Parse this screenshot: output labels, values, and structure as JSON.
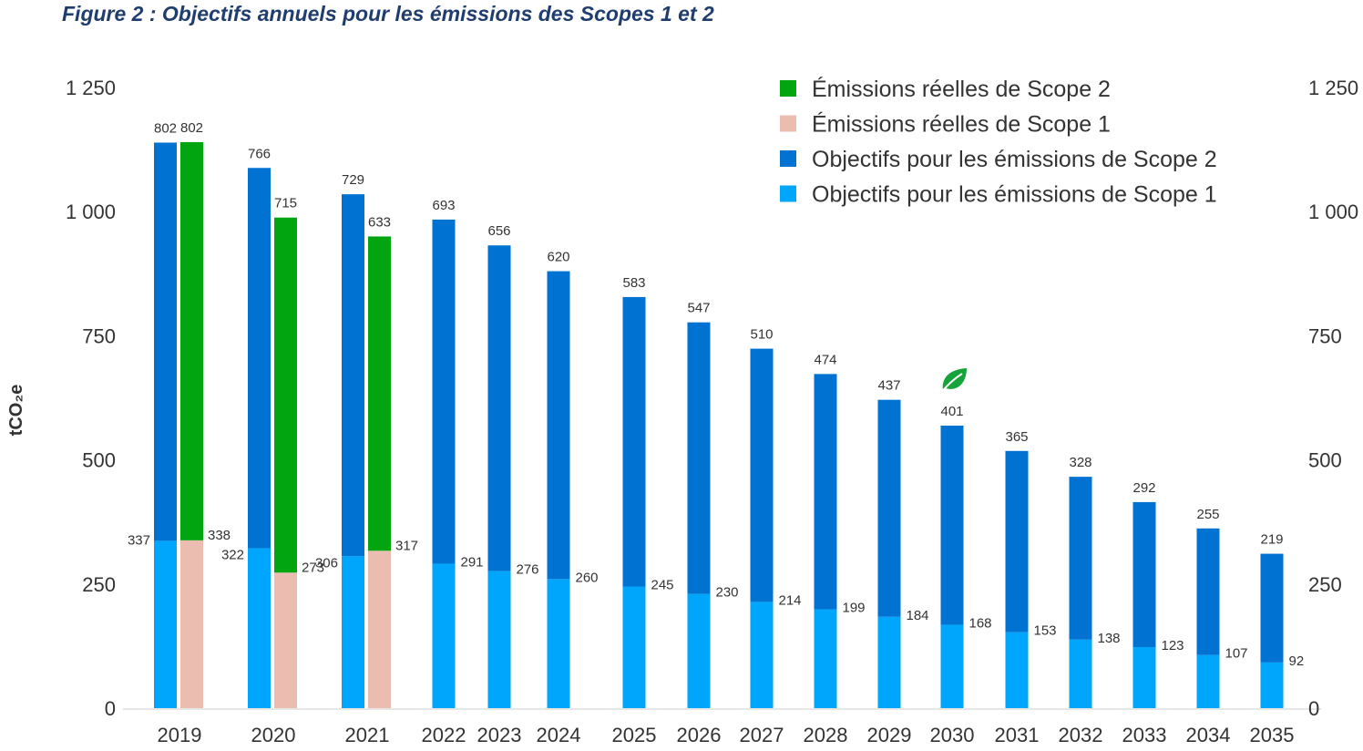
{
  "title": "Figure 2 : Objectifs annuels pour les émissions des Scopes 1 et 2",
  "chart_data": {
    "type": "bar",
    "stacked": true,
    "ylabel": "tCO₂e",
    "ylim": [
      0,
      1250
    ],
    "yticks": [
      0,
      250,
      500,
      750,
      1000,
      1250
    ],
    "ytick_labels": [
      "0",
      "250",
      "500",
      "750",
      "1 000",
      "1 250"
    ],
    "grid": false,
    "legend_position": "top-right",
    "categories": [
      "2019",
      "2020",
      "2021",
      "2022",
      "2023",
      "2024",
      "2025",
      "2026",
      "2027",
      "2028",
      "2029",
      "2030",
      "2031",
      "2032",
      "2033",
      "2034",
      "2035"
    ],
    "targets": {
      "scope1": [
        337,
        322,
        306,
        291,
        276,
        260,
        245,
        230,
        214,
        199,
        184,
        168,
        153,
        138,
        123,
        107,
        92
      ],
      "scope2": [
        802,
        766,
        729,
        693,
        656,
        620,
        583,
        547,
        510,
        474,
        437,
        401,
        365,
        328,
        292,
        255,
        219
      ]
    },
    "actuals": {
      "scope1": [
        338,
        273,
        317
      ],
      "scope2": [
        802,
        715,
        633
      ]
    },
    "legend": [
      {
        "label": "Émissions réelles de Scope 2",
        "color": "#00a50f"
      },
      {
        "label": "Émissions réelles de Scope 1",
        "color": "#ebbdb1"
      },
      {
        "label": "Objectifs pour les émissions de Scope 2",
        "color": "#0073d2"
      },
      {
        "label": "Objectifs pour les émissions de Scope 1",
        "color": "#00a6fb"
      }
    ],
    "colors": {
      "target_scope2": "#0073d2",
      "target_scope1": "#00a6fb",
      "actual_scope2": "#00a50f",
      "actual_scope1": "#ebbdb1"
    },
    "annotation_icon": {
      "name": "leaf-icon",
      "category": "2030",
      "color": "#15a33a"
    }
  }
}
